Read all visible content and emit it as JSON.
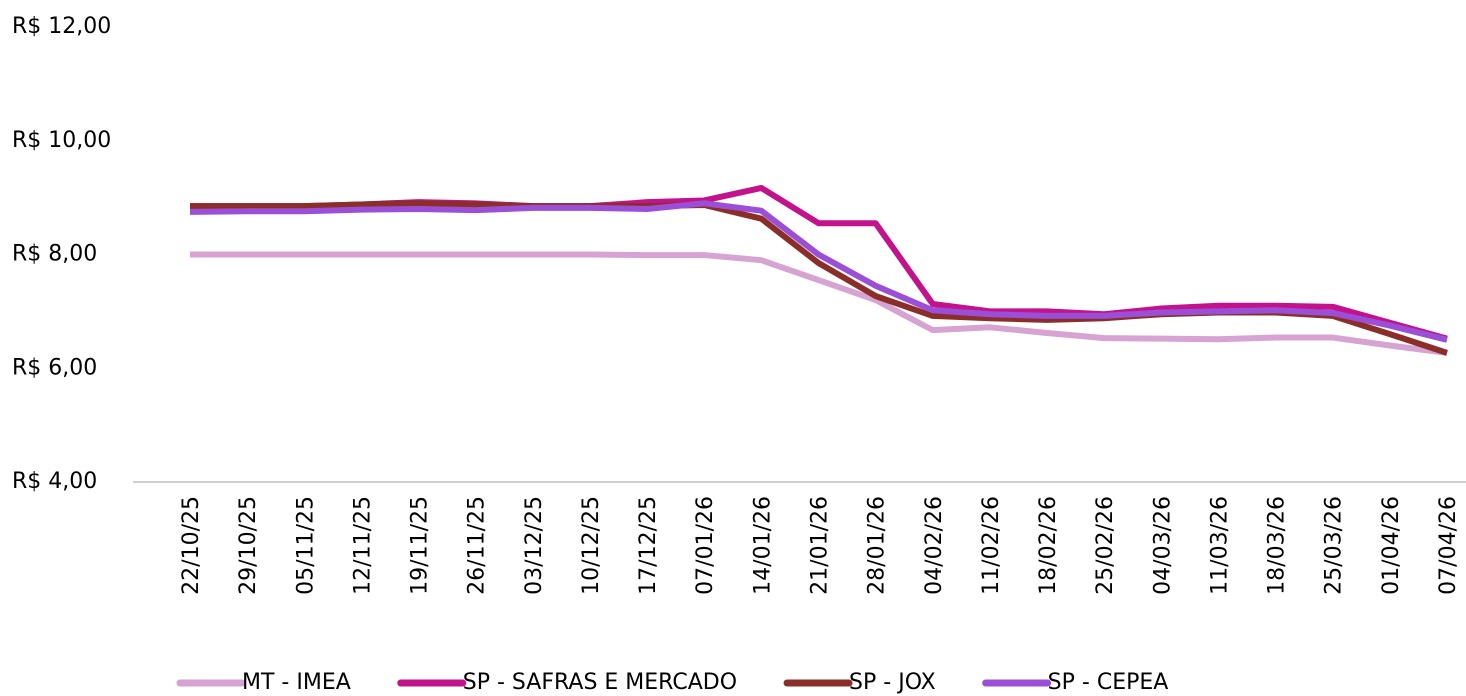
{
  "chart_data": {
    "type": "line",
    "categories": [
      "22/10/25",
      "29/10/25",
      "05/11/25",
      "12/11/25",
      "19/11/25",
      "26/11/25",
      "03/12/25",
      "10/12/25",
      "17/12/25",
      "07/01/26",
      "14/01/26",
      "21/01/26",
      "28/01/26",
      "04/02/26",
      "11/02/26",
      "18/02/26",
      "25/02/26",
      "04/03/26",
      "11/03/26",
      "18/03/26",
      "25/03/26",
      "01/04/26",
      "07/04/26"
    ],
    "series": [
      {
        "name": "MT - IMEA",
        "color": "#d6a3d3",
        "values": [
          8.0,
          8.0,
          8.0,
          8.0,
          8.0,
          8.0,
          8.0,
          8.0,
          7.99,
          7.99,
          7.9,
          7.55,
          7.2,
          6.67,
          6.72,
          6.62,
          6.53,
          6.52,
          6.51,
          6.54,
          6.54,
          6.4,
          6.27
        ]
      },
      {
        "name": "SP - SAFRAS E MERCADO",
        "color": "#c2128c",
        "values": [
          8.85,
          8.85,
          8.85,
          8.88,
          8.92,
          8.9,
          8.85,
          8.85,
          8.92,
          8.95,
          9.17,
          8.55,
          8.55,
          7.13,
          7.0,
          7.0,
          6.95,
          7.05,
          7.1,
          7.1,
          7.08,
          6.8,
          6.52
        ]
      },
      {
        "name": "SP - JOX",
        "color": "#8b2e2a",
        "values": [
          8.85,
          8.85,
          8.85,
          8.88,
          8.9,
          8.88,
          8.85,
          8.85,
          8.85,
          8.87,
          8.63,
          7.85,
          7.27,
          6.92,
          6.88,
          6.85,
          6.88,
          6.95,
          6.98,
          6.98,
          6.92,
          6.6,
          6.27
        ]
      },
      {
        "name": "SP - CEPEA",
        "color": "#9b4fd6",
        "values": [
          8.75,
          8.76,
          8.76,
          8.79,
          8.8,
          8.78,
          8.82,
          8.82,
          8.8,
          8.9,
          8.77,
          8.0,
          7.45,
          7.02,
          6.95,
          6.92,
          6.92,
          6.98,
          7.0,
          7.02,
          6.97,
          6.75,
          6.5
        ]
      }
    ],
    "ylim": [
      4,
      12
    ],
    "yticks": [
      {
        "value": 4,
        "label": "R$ 4,00"
      },
      {
        "value": 6,
        "label": "R$ 6,00"
      },
      {
        "value": 8,
        "label": "R$ 8,00"
      },
      {
        "value": 10,
        "label": "R$ 10,00"
      },
      {
        "value": 12,
        "label": "R$ 12,00"
      }
    ],
    "grid": false
  }
}
